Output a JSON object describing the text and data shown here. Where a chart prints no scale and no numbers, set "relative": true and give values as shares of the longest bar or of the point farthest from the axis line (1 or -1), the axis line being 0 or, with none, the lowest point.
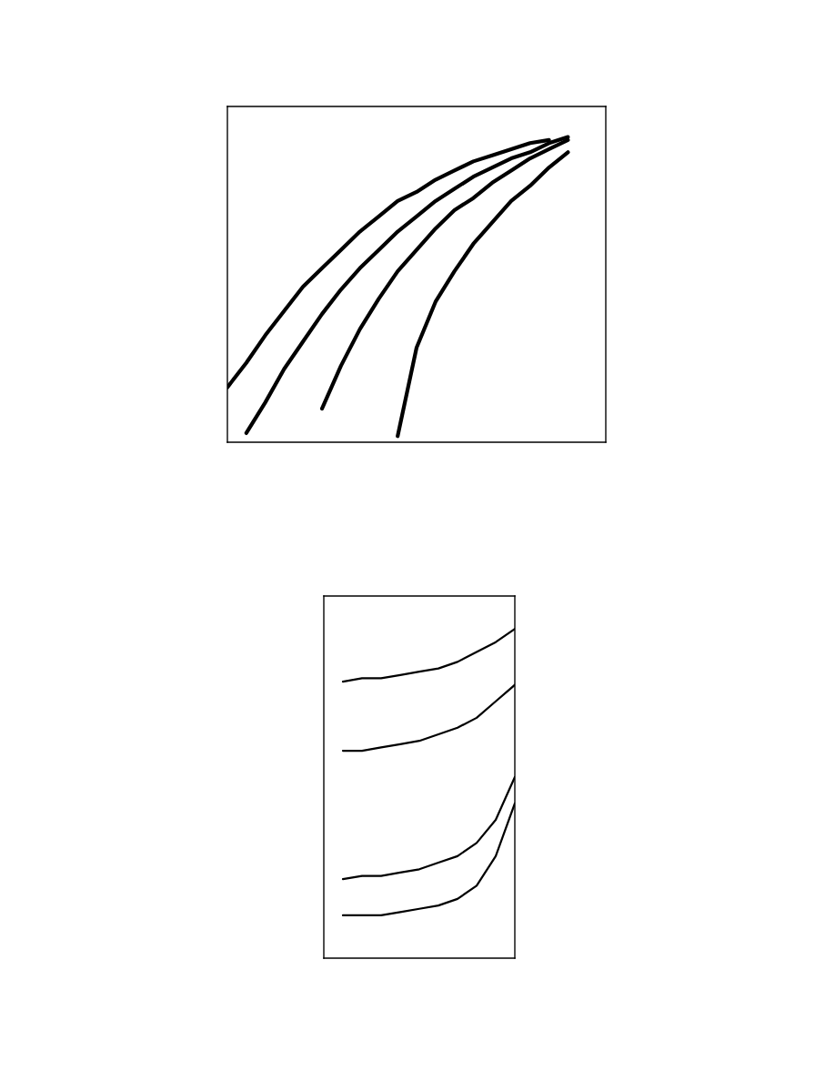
{
  "chart_data": [
    {
      "type": "line",
      "relative": true,
      "categories": [
        null,
        null,
        null,
        null,
        null,
        null,
        null,
        null,
        null,
        null,
        null,
        null,
        null,
        null,
        null,
        null,
        null,
        null,
        null,
        null,
        null
      ],
      "series": [
        {
          "color": "#000000",
          "values": [
            0.18,
            0.26,
            0.35,
            0.43,
            0.51,
            0.57,
            0.63,
            0.69,
            0.74,
            0.79,
            0.82,
            0.86,
            0.89,
            0.92,
            0.94,
            0.96,
            0.98,
            0.99,
            null,
            null,
            null
          ]
        },
        {
          "color": "#000000",
          "values": [
            null,
            0.03,
            0.13,
            0.24,
            0.33,
            0.42,
            0.5,
            0.57,
            0.63,
            0.69,
            0.74,
            0.79,
            0.83,
            0.87,
            0.9,
            0.93,
            0.95,
            0.98,
            1.0,
            null,
            null
          ]
        },
        {
          "color": "#000000",
          "values": [
            null,
            null,
            null,
            null,
            null,
            0.11,
            0.25,
            0.37,
            0.47,
            0.56,
            0.63,
            0.7,
            0.76,
            0.8,
            0.85,
            0.89,
            0.93,
            0.96,
            0.99,
            null,
            null
          ]
        },
        {
          "color": "#000000",
          "values": [
            null,
            null,
            null,
            null,
            null,
            null,
            null,
            null,
            null,
            0.02,
            0.31,
            0.46,
            0.56,
            0.65,
            0.72,
            0.79,
            0.84,
            0.9,
            0.95,
            null,
            null
          ]
        }
      ]
    },
    {
      "type": "line",
      "relative": true,
      "categories": [
        null,
        null,
        null,
        null,
        null,
        null,
        null,
        null,
        null,
        null,
        null
      ],
      "series": [
        {
          "color": "#000000",
          "values": [
            null,
            0.84,
            0.85,
            0.85,
            0.86,
            0.87,
            0.88,
            0.9,
            0.93,
            0.96,
            1.0
          ]
        },
        {
          "color": "#000000",
          "values": [
            null,
            0.63,
            0.63,
            0.64,
            0.65,
            0.66,
            0.68,
            0.7,
            0.73,
            0.78,
            0.83
          ]
        },
        {
          "color": "#000000",
          "values": [
            null,
            0.24,
            0.25,
            0.25,
            0.26,
            0.27,
            0.29,
            0.31,
            0.35,
            0.42,
            0.55
          ]
        },
        {
          "color": "#000000",
          "values": [
            null,
            0.13,
            0.13,
            0.13,
            0.14,
            0.15,
            0.16,
            0.18,
            0.22,
            0.31,
            0.47
          ]
        }
      ]
    }
  ]
}
